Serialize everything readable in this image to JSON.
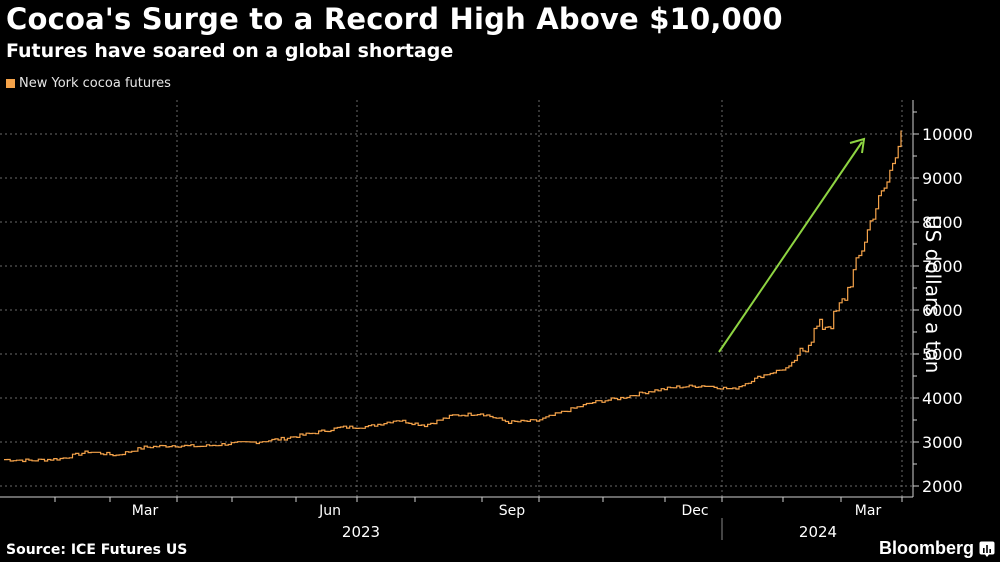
{
  "header": {
    "title": "Cocoa's Surge to a Record High Above $10,000",
    "subtitle": "Futures have soared on a global shortage"
  },
  "legend": {
    "items": [
      {
        "label": "New York cocoa futures",
        "color": "#f5a34a"
      }
    ]
  },
  "footer": {
    "source": "Source: ICE Futures US",
    "brand": "Bloomberg"
  },
  "colors": {
    "background": "#000000",
    "series": "#f5a34a",
    "arrow": "#8ed442",
    "grid": "#6a6a6a",
    "axis": "#d0d0d0"
  },
  "chart_data": {
    "type": "line",
    "title": "Cocoa's Surge to a Record High Above $10,000",
    "subtitle": "Futures have soared on a global shortage",
    "xlabel": "",
    "ylabel": "US dollars a ton",
    "ylim": [
      2000,
      10000
    ],
    "yticks": [
      2000,
      3000,
      4000,
      5000,
      6000,
      7000,
      8000,
      9000,
      10000
    ],
    "xticks": [
      "Mar",
      "Jun",
      "Sep",
      "Dec",
      "Mar"
    ],
    "year_labels": [
      "2023",
      "2024"
    ],
    "grid": true,
    "legend_position": "top-left",
    "annotations": [
      "green upward arrow from ~Dec 2023 (5000) to ~Mar 2024 (10000)"
    ],
    "series": [
      {
        "name": "New York cocoa futures",
        "x": [
          "2023-01-03",
          "2023-01-17",
          "2023-01-31",
          "2023-02-14",
          "2023-02-28",
          "2023-03-14",
          "2023-03-28",
          "2023-04-11",
          "2023-04-25",
          "2023-05-09",
          "2023-05-23",
          "2023-06-06",
          "2023-06-20",
          "2023-07-04",
          "2023-07-18",
          "2023-08-01",
          "2023-08-15",
          "2023-08-29",
          "2023-09-12",
          "2023-09-26",
          "2023-10-10",
          "2023-10-24",
          "2023-11-07",
          "2023-11-21",
          "2023-12-05",
          "2023-12-19",
          "2024-01-02",
          "2024-01-16",
          "2024-01-30",
          "2024-02-06",
          "2024-02-13",
          "2024-02-20",
          "2024-02-27",
          "2024-03-05",
          "2024-03-12",
          "2024-03-19",
          "2024-03-26"
        ],
        "values": [
          2600,
          2580,
          2620,
          2780,
          2700,
          2880,
          2920,
          2900,
          2960,
          3000,
          3080,
          3200,
          3330,
          3350,
          3500,
          3380,
          3600,
          3650,
          3450,
          3480,
          3700,
          3900,
          4000,
          4150,
          4250,
          4280,
          4200,
          4500,
          4700,
          5100,
          5600,
          5700,
          6300,
          7200,
          8200,
          8900,
          10080
        ]
      }
    ]
  }
}
